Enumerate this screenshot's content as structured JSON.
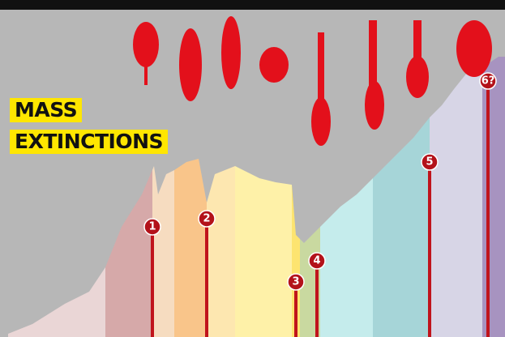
{
  "title": {
    "lines": [
      "MASS",
      "EXTINCTIONS"
    ]
  },
  "markers": [
    {
      "label": "1"
    },
    {
      "label": "2"
    },
    {
      "label": "3"
    },
    {
      "label": "4"
    },
    {
      "label": "5"
    },
    {
      "label": "6?"
    }
  ]
}
